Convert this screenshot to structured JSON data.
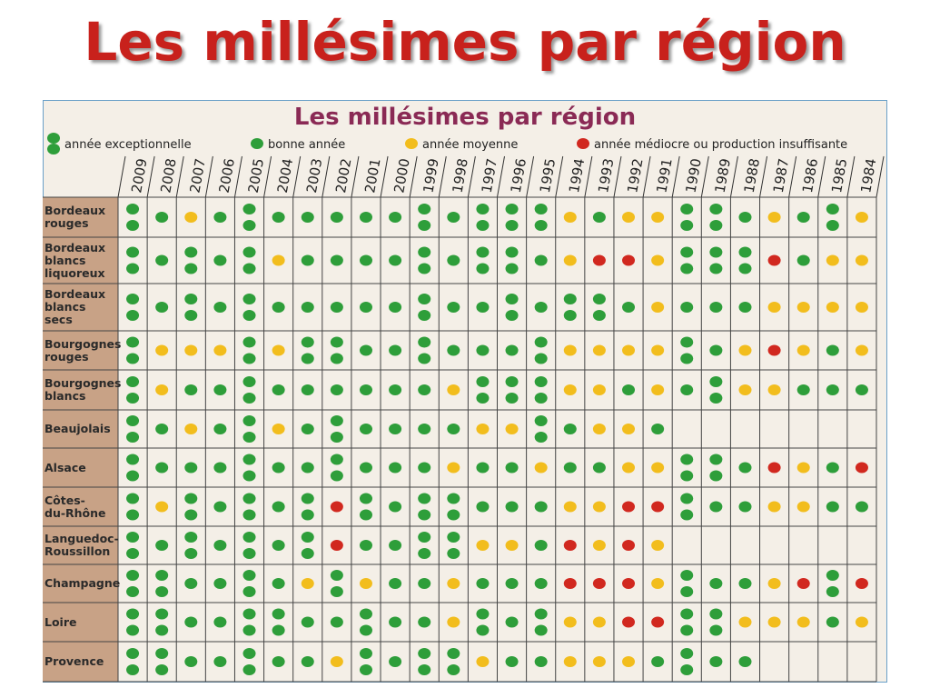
{
  "page_title": "Les millésimes par région",
  "card": {
    "title": "Les millésimes par région",
    "legend": [
      {
        "label": "année exceptionnelle",
        "color": "#2e9e3a"
      },
      {
        "label": "bonne année",
        "color": "#2e9e3a"
      },
      {
        "label": "année moyenne",
        "color": "#f2bd1d"
      },
      {
        "label": "année médiocre ou production insuffisante",
        "color": "#d1281f"
      }
    ],
    "years": [
      2009,
      2008,
      2007,
      2006,
      2005,
      2004,
      2003,
      2002,
      2001,
      2000,
      1999,
      1998,
      1997,
      1996,
      1995,
      1994,
      1993,
      1992,
      1991,
      1990,
      1989,
      1988,
      1987,
      1986,
      1985,
      1984
    ],
    "rows": [
      {
        "region": "Bordeaux\nrouges",
        "ratings": [
          0,
          1,
          2,
          1,
          0,
          1,
          1,
          1,
          1,
          1,
          0,
          1,
          0,
          0,
          0,
          2,
          1,
          2,
          2,
          0,
          0,
          1,
          2,
          1,
          0,
          2
        ]
      },
      {
        "region": "Bordeaux\nblancs\nliquoreux",
        "ratings": [
          0,
          1,
          0,
          1,
          0,
          2,
          1,
          1,
          1,
          1,
          0,
          1,
          0,
          0,
          1,
          2,
          3,
          3,
          2,
          0,
          0,
          0,
          3,
          1,
          2,
          2
        ]
      },
      {
        "region": "Bordeaux\nblancs\nsecs",
        "ratings": [
          0,
          1,
          0,
          1,
          0,
          1,
          1,
          1,
          1,
          1,
          0,
          1,
          1,
          0,
          1,
          0,
          0,
          1,
          2,
          1,
          1,
          1,
          2,
          2,
          2,
          2
        ]
      },
      {
        "region": "Bourgognes\nrouges",
        "ratings": [
          0,
          2,
          2,
          2,
          0,
          2,
          0,
          0,
          1,
          1,
          0,
          1,
          1,
          1,
          0,
          2,
          2,
          2,
          2,
          0,
          1,
          2,
          3,
          2,
          1,
          2
        ]
      },
      {
        "region": "Bourgognes\nblancs",
        "ratings": [
          0,
          2,
          1,
          1,
          0,
          1,
          1,
          1,
          1,
          1,
          1,
          2,
          0,
          0,
          0,
          2,
          2,
          1,
          2,
          1,
          0,
          2,
          2,
          1,
          1,
          1
        ]
      },
      {
        "region": "Beaujolais",
        "ratings": [
          0,
          1,
          2,
          1,
          0,
          2,
          1,
          0,
          1,
          1,
          1,
          1,
          2,
          2,
          0,
          1,
          2,
          2,
          1,
          null,
          null,
          null,
          null,
          null,
          null,
          null
        ]
      },
      {
        "region": "Alsace",
        "ratings": [
          0,
          1,
          1,
          1,
          0,
          1,
          1,
          0,
          1,
          1,
          1,
          2,
          1,
          1,
          2,
          1,
          1,
          2,
          2,
          0,
          0,
          1,
          3,
          2,
          1,
          3
        ]
      },
      {
        "region": "Côtes-\ndu-Rhône",
        "ratings": [
          0,
          2,
          0,
          1,
          0,
          1,
          0,
          3,
          0,
          1,
          0,
          0,
          1,
          1,
          1,
          2,
          2,
          3,
          3,
          0,
          1,
          1,
          2,
          2,
          1,
          1
        ]
      },
      {
        "region": "Languedoc-\nRoussillon",
        "ratings": [
          0,
          1,
          0,
          1,
          0,
          1,
          0,
          3,
          1,
          1,
          0,
          0,
          2,
          2,
          1,
          3,
          2,
          3,
          2,
          null,
          null,
          null,
          null,
          null,
          null,
          null
        ]
      },
      {
        "region": "Champagne",
        "ratings": [
          0,
          0,
          1,
          1,
          0,
          1,
          2,
          0,
          2,
          1,
          1,
          2,
          1,
          1,
          1,
          3,
          3,
          3,
          2,
          0,
          1,
          1,
          2,
          3,
          0,
          3
        ]
      },
      {
        "region": "Loire",
        "ratings": [
          0,
          0,
          1,
          1,
          0,
          0,
          1,
          1,
          0,
          1,
          1,
          2,
          0,
          1,
          0,
          2,
          2,
          3,
          3,
          0,
          0,
          2,
          2,
          2,
          1,
          2
        ]
      },
      {
        "region": "Provence",
        "ratings": [
          0,
          0,
          1,
          1,
          0,
          1,
          1,
          2,
          0,
          1,
          0,
          0,
          2,
          1,
          1,
          2,
          2,
          2,
          1,
          0,
          1,
          1,
          null,
          null,
          null,
          null
        ]
      }
    ]
  }
}
